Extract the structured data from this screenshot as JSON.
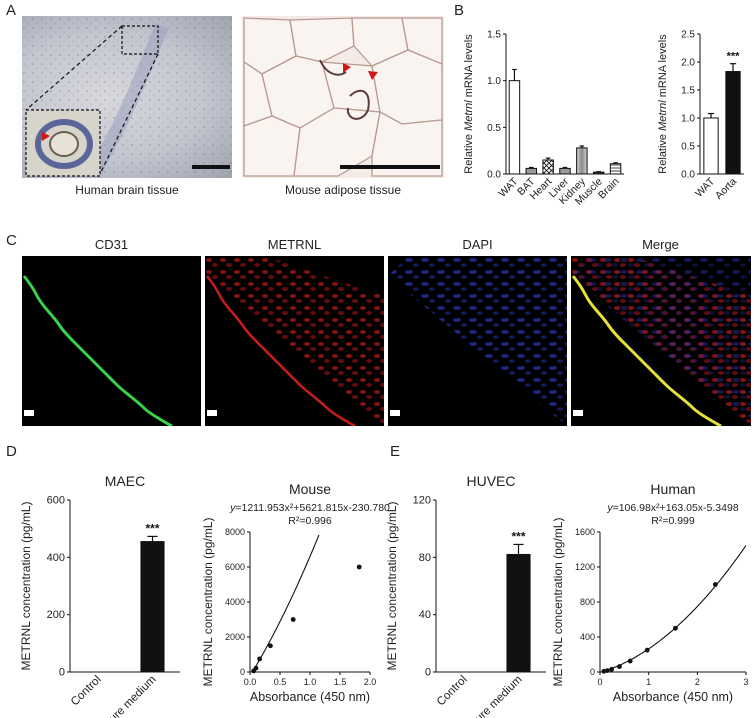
{
  "panels": {
    "A": {
      "letter": "A",
      "captions": [
        "Human brain tissue",
        "Mouse adipose tissue"
      ]
    },
    "B": {
      "letter": "B"
    },
    "C": {
      "letter": "C",
      "channels": [
        {
          "label": "CD31",
          "color": "#1a9a2a"
        },
        {
          "label": "METRNL",
          "color": "#d02020"
        },
        {
          "label": "DAPI",
          "color": "#3030a0"
        },
        {
          "label": "Merge",
          "color": "#222222"
        }
      ]
    },
    "D": {
      "letter": "D"
    },
    "E": {
      "letter": "E"
    }
  },
  "chart_data": [
    {
      "id": "B-left",
      "type": "bar",
      "ylabel_prefix": "Relative ",
      "ylabel_italic": "Metrnl",
      "ylabel_suffix": " mRNA levels",
      "categories": [
        "WAT",
        "BAT",
        "Heart",
        "Liver",
        "Kidney",
        "Muscle",
        "Brain"
      ],
      "values": [
        1.0,
        0.06,
        0.15,
        0.06,
        0.28,
        0.02,
        0.11
      ],
      "errors": [
        0.12,
        0.01,
        0.02,
        0.01,
        0.02,
        0.005,
        0.01
      ],
      "fills": [
        "white",
        "gray",
        "crosshatch",
        "gray",
        "lightgray",
        "dark",
        "stripe"
      ],
      "ylim": [
        0,
        1.5
      ],
      "yticks": [
        "0.0",
        "0.5",
        "1.0",
        "1.5"
      ]
    },
    {
      "id": "B-right",
      "type": "bar",
      "ylabel_prefix": "Relative ",
      "ylabel_italic": "Metrnl",
      "ylabel_suffix": " mRNA levels",
      "categories": [
        "WAT",
        "Aorta"
      ],
      "values": [
        1.0,
        1.83
      ],
      "errors": [
        0.08,
        0.14
      ],
      "fills": [
        "white",
        "black"
      ],
      "significance": "***",
      "ylim": [
        0,
        2.5
      ],
      "yticks": [
        "0.0",
        "0.5",
        "1.0",
        "1.5",
        "2.0",
        "2.5"
      ]
    },
    {
      "id": "D-bar",
      "type": "bar",
      "title": "MAEC",
      "ylabel": "METRNL concentration (pg/mL)",
      "categories": [
        "Control",
        "Culture medium"
      ],
      "values": [
        0,
        455
      ],
      "errors": [
        0,
        18
      ],
      "significance": "***",
      "ylim": [
        0,
        600
      ],
      "yticks": [
        "0",
        "200",
        "400",
        "600"
      ]
    },
    {
      "id": "D-curve",
      "type": "scatter",
      "title": "Mouse",
      "equation_y": "y",
      "equation_body": "=1211.953x²+5621.815x-230.780",
      "r2_label": "R²=0.996",
      "xlabel": "Absorbance (450 nm)",
      "ylabel": "METRNL concentration (pg/mL)",
      "points": [
        [
          0.06,
          62
        ],
        [
          0.1,
          220
        ],
        [
          0.16,
          750
        ],
        [
          0.34,
          1500
        ],
        [
          0.72,
          3000
        ],
        [
          1.82,
          6000
        ]
      ],
      "fit": {
        "a": 1211.953,
        "b": 5621.815,
        "c": -230.78
      },
      "xlim": [
        0,
        2.0
      ],
      "ylim": [
        0,
        8000
      ],
      "xticks": [
        "0.0",
        "0.5",
        "1.0",
        "1.5",
        "2.0"
      ],
      "yticks": [
        "0",
        "2000",
        "4000",
        "6000",
        "8000"
      ]
    },
    {
      "id": "E-bar",
      "type": "bar",
      "title": "HUVEC",
      "ylabel": "METRNL concentration (pg/mL)",
      "categories": [
        "Control",
        "Culture medium"
      ],
      "values": [
        0,
        82
      ],
      "errors": [
        0,
        7
      ],
      "significance": "***",
      "ylim": [
        0,
        120
      ],
      "yticks": [
        "0",
        "40",
        "80",
        "120"
      ]
    },
    {
      "id": "E-curve",
      "type": "scatter",
      "title": "Human",
      "equation_y": "y",
      "equation_body": "=106.98x²+163.05x-5.3498",
      "r2_label": "R²=0.999",
      "xlabel": "Absorbance (450 nm)",
      "ylabel": "METRNL concentration (pg/mL)",
      "points": [
        [
          0.08,
          8
        ],
        [
          0.15,
          16
        ],
        [
          0.24,
          31
        ],
        [
          0.4,
          62
        ],
        [
          0.62,
          125
        ],
        [
          0.97,
          250
        ],
        [
          1.55,
          500
        ],
        [
          2.37,
          1000
        ]
      ],
      "fit": {
        "a": 106.98,
        "b": 163.05,
        "c": -5.3498
      },
      "xlim": [
        0,
        3
      ],
      "ylim": [
        0,
        1600
      ],
      "xticks": [
        "0",
        "1",
        "2",
        "3"
      ],
      "yticks": [
        "0",
        "400",
        "800",
        "1200",
        "1600"
      ]
    }
  ]
}
